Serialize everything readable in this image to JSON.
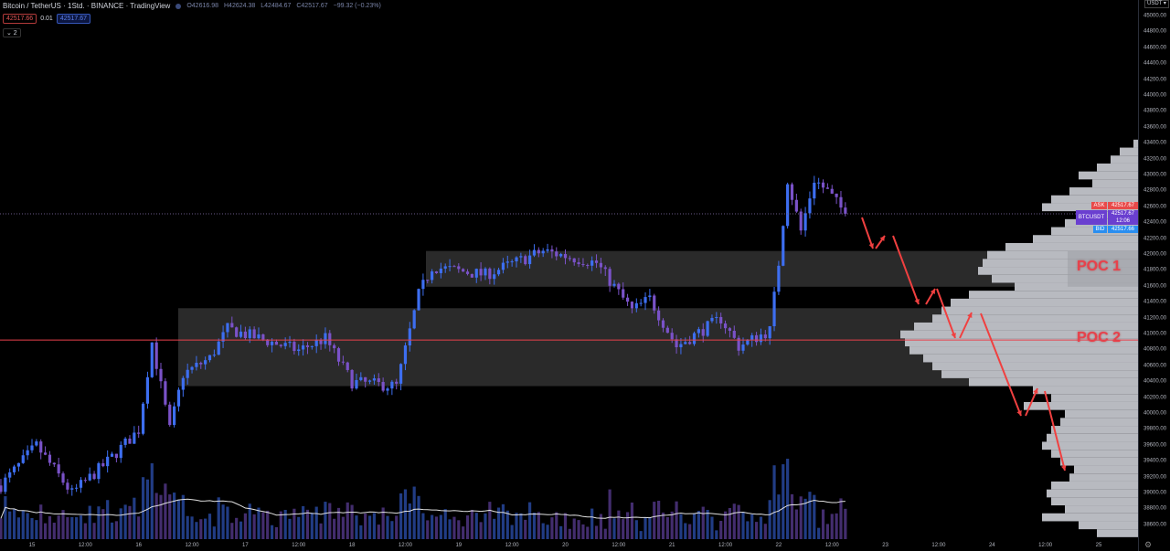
{
  "header": {
    "title": "Bitcoin / TetherUS · 1Std. · BINANCE · TradingView",
    "open": "O42616.98",
    "high": "H42624.38",
    "low": "L42484.67",
    "close": "C42517.67",
    "change": "−99.32 (−0.23%)",
    "sell_price": "42517.66",
    "spread": "0.01",
    "buy_price": "42517.67",
    "indicators_toggle": "⌄ 2"
  },
  "price_scale": {
    "currency": "USDT ▾",
    "labels": [
      "45000.00",
      "44800.00",
      "44600.00",
      "44400.00",
      "44200.00",
      "44000.00",
      "43800.00",
      "43600.00",
      "43400.00",
      "43200.00",
      "43000.00",
      "42800.00",
      "42600.00",
      "42400.00",
      "42200.00",
      "42000.00",
      "41800.00",
      "41600.00",
      "41400.00",
      "41200.00",
      "41000.00",
      "40800.00",
      "40600.00",
      "40400.00",
      "40200.00",
      "40000.00",
      "39800.00",
      "39600.00",
      "39400.00",
      "39200.00",
      "39000.00",
      "38800.00",
      "38600.00"
    ],
    "ask_label": "ASK",
    "ask_value": "42517.67",
    "symbol_label": "BTCUSDT",
    "last_value": "42517.67",
    "countdown": "12:06",
    "bid_label": "BID",
    "bid_value": "42517.66"
  },
  "time_axis": {
    "labels": [
      "15",
      "12:00",
      "16",
      "12:00",
      "17",
      "12:00",
      "18",
      "12:00",
      "19",
      "12:00",
      "20",
      "12:00",
      "21",
      "12:00",
      "22",
      "12:00",
      "23",
      "12:00",
      "24",
      "12:00",
      "25"
    ]
  },
  "annotations": {
    "poc1": "POC 1",
    "poc2": "POC 2",
    "poc1_range": [
      41600,
      42050
    ],
    "poc2_range": [
      40350,
      41330
    ],
    "poc_line_price": 40930
  },
  "colors": {
    "up": "#3d6ef0",
    "down": "#7a52c8",
    "annotation": "#f04040",
    "profile": "#b8bac0",
    "zone": "#2a2a2a"
  },
  "chart_data": {
    "type": "candlestick",
    "interval": "1h",
    "ylim": [
      38500,
      45100
    ],
    "close_path": [
      [
        "14 17:00",
        39100
      ],
      [
        "15 01:00",
        39600
      ],
      [
        "15 09:00",
        39000
      ],
      [
        "15 17:00",
        39400
      ],
      [
        "16 00:00",
        39800
      ],
      [
        "16 03:00",
        40900
      ],
      [
        "16 07:00",
        39800
      ],
      [
        "16 10:00",
        40500
      ],
      [
        "16 16:00",
        40700
      ],
      [
        "16 20:00",
        41070
      ],
      [
        "17 06:00",
        40900
      ],
      [
        "17 12:00",
        40800
      ],
      [
        "17 18:00",
        40950
      ],
      [
        "18 00:00",
        40400
      ],
      [
        "18 10:00",
        40350
      ],
      [
        "18 15:00",
        41500
      ],
      [
        "18 18:00",
        41850
      ],
      [
        "19 06:00",
        41750
      ],
      [
        "19 19:00",
        42050
      ],
      [
        "19 23:00",
        42000
      ],
      [
        "20 07:00",
        41900
      ],
      [
        "20 15:00",
        41300
      ],
      [
        "20 19:00",
        41450
      ],
      [
        "21 01:00",
        40850
      ],
      [
        "21 11:00",
        41200
      ],
      [
        "21 15:00",
        40850
      ],
      [
        "21 22:00",
        41050
      ],
      [
        "22 00:00",
        41900
      ],
      [
        "22 02:00",
        42950
      ],
      [
        "22 05:00",
        42300
      ],
      [
        "22 08:00",
        42950
      ],
      [
        "22 11:00",
        42800
      ],
      [
        "22 15:00",
        42517.67
      ]
    ],
    "volume_profile": {
      "prices": [
        43400,
        43300,
        43200,
        43100,
        43000,
        42900,
        42800,
        42700,
        42600,
        42500,
        42400,
        42300,
        42200,
        42100,
        42000,
        41900,
        41800,
        41700,
        41600,
        41500,
        41400,
        41300,
        41200,
        41100,
        41000,
        40900,
        40800,
        40700,
        40600,
        40500,
        40400,
        40300,
        40200,
        40100,
        40000,
        39900,
        39800,
        39700,
        39600,
        39500,
        39400,
        39300,
        39200,
        39100,
        39000,
        38900,
        38800,
        38700,
        38600,
        38500
      ],
      "volumes": [
        5,
        20,
        30,
        45,
        65,
        50,
        75,
        95,
        105,
        55,
        80,
        95,
        115,
        145,
        165,
        170,
        175,
        160,
        135,
        185,
        205,
        215,
        225,
        245,
        260,
        255,
        250,
        235,
        225,
        215,
        185,
        115,
        95,
        125,
        80,
        85,
        95,
        100,
        105,
        95,
        85,
        70,
        75,
        95,
        100,
        95,
        80,
        105,
        65,
        45
      ]
    }
  }
}
